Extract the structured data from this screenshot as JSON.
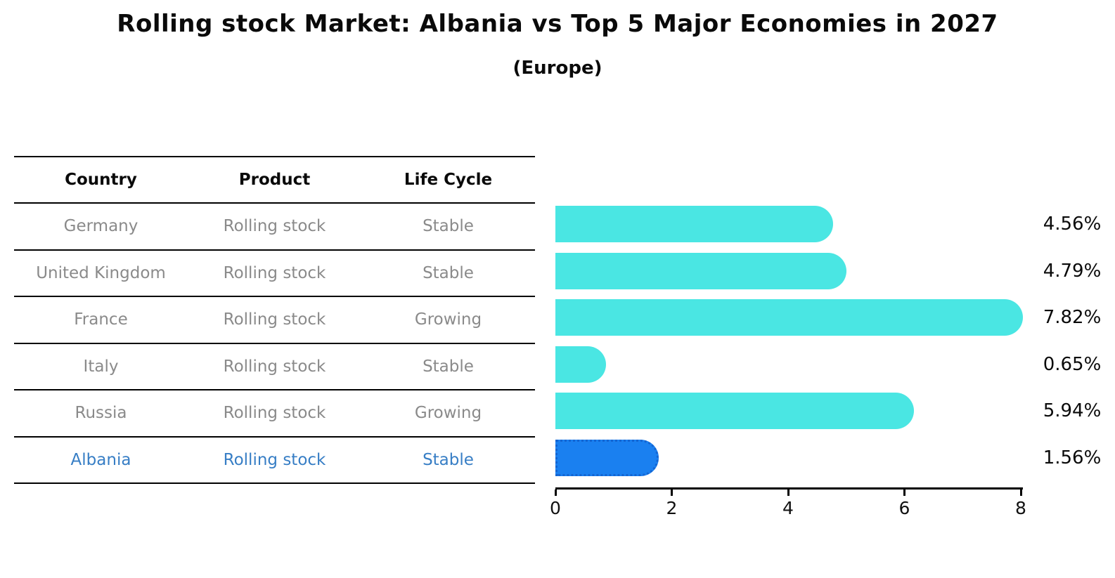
{
  "title": "Rolling stock Market: Albania vs Top 5 Major Economies in 2027",
  "subtitle": "(Europe)",
  "table": {
    "headers": [
      "Country",
      "Product",
      "Life Cycle"
    ],
    "rows": [
      {
        "country": "Germany",
        "product": "Rolling stock",
        "life_cycle": "Stable",
        "highlighted": false
      },
      {
        "country": "United Kingdom",
        "product": "Rolling stock",
        "life_cycle": "Stable",
        "highlighted": false
      },
      {
        "country": "France",
        "product": "Rolling stock",
        "life_cycle": "Growing",
        "highlighted": false
      },
      {
        "country": "Italy",
        "product": "Rolling stock",
        "life_cycle": "Stable",
        "highlighted": false
      },
      {
        "country": "Russia",
        "product": "Rolling stock",
        "life_cycle": "Growing",
        "highlighted": false
      },
      {
        "country": "Albania",
        "product": "Rolling stock",
        "life_cycle": "Stable",
        "highlighted": true
      }
    ]
  },
  "chart_data": {
    "type": "bar",
    "orientation": "horizontal",
    "title": "Rolling stock Market: Albania vs Top 5 Major Economies in 2027 (Europe)",
    "categories": [
      "Germany",
      "United Kingdom",
      "France",
      "Italy",
      "Russia",
      "Albania"
    ],
    "values": [
      4.56,
      4.79,
      7.82,
      0.65,
      5.94,
      1.56
    ],
    "labels": [
      "4.56%",
      "4.79%",
      "7.82%",
      "0.65%",
      "5.94%",
      "1.56%"
    ],
    "highlight_index": 5,
    "xlim": [
      0,
      8
    ],
    "xticks": [
      0,
      2,
      4,
      6,
      8
    ],
    "xtick_labels": [
      "0",
      "2",
      "4",
      "6",
      "8"
    ],
    "grid": false,
    "legend": false
  },
  "colors": {
    "bar_color": "#4ae6e3",
    "highlight_bar_color": "#1a80f0",
    "highlight_bar_border": "#1465d2",
    "highlight_text": "#377ec5",
    "muted_text": "#8a8a8a",
    "text": "#0a0a0a"
  }
}
